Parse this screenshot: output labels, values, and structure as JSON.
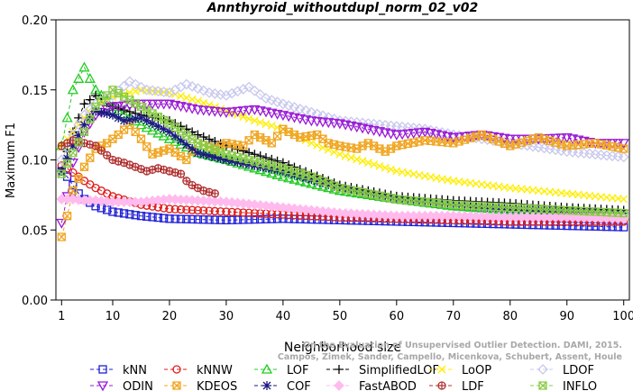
{
  "chart_data": {
    "type": "line",
    "title": "Annthyroid_withoutdupl_norm_02_v02",
    "xlabel": "Neighborhood size",
    "ylabel": "Maximum F1",
    "xlim": [
      0,
      101
    ],
    "ylim": [
      0.0,
      0.2
    ],
    "xticks": [
      1,
      10,
      20,
      30,
      40,
      50,
      60,
      70,
      80,
      90,
      100
    ],
    "yticks": [
      0.0,
      0.05,
      0.1,
      0.15,
      0.2
    ],
    "xtick_labels": [
      "1",
      "10",
      "20",
      "30",
      "40",
      "50",
      "60",
      "70",
      "80",
      "90",
      "100"
    ],
    "ytick_labels": [
      "0.00",
      "0.05",
      "0.10",
      "0.15",
      "0.20"
    ],
    "watermark": "Campos, Zimek, Sander, Campello, Micenkova, Schubert, Assent, Houle\nOn the Evaluation of Unsupervised Outlier Detection. DAMI, 2015.",
    "legend_position": "bottom",
    "series": [
      {
        "name": "kNN",
        "color": "#1f1fd6",
        "marker": "square",
        "x": [
          1,
          2,
          3,
          4,
          5,
          7,
          10,
          15,
          20,
          30,
          40,
          50,
          60,
          70,
          80,
          90,
          100
        ],
        "y": [
          0.092,
          0.088,
          0.082,
          0.076,
          0.072,
          0.067,
          0.063,
          0.06,
          0.058,
          0.057,
          0.058,
          0.057,
          0.056,
          0.055,
          0.054,
          0.053,
          0.052
        ]
      },
      {
        "name": "kNNW",
        "color": "#e01b1b",
        "marker": "circle",
        "x": [
          1,
          2,
          3,
          4,
          5,
          7,
          10,
          15,
          20,
          30,
          40,
          50,
          60,
          70,
          80,
          90,
          100
        ],
        "y": [
          0.096,
          0.094,
          0.091,
          0.088,
          0.085,
          0.08,
          0.074,
          0.068,
          0.065,
          0.063,
          0.061,
          0.059,
          0.058,
          0.057,
          0.056,
          0.056,
          0.056
        ]
      },
      {
        "name": "LOF",
        "color": "#22cc22",
        "marker": "triangle-up",
        "x": [
          1,
          2,
          3,
          4,
          5,
          7,
          10,
          15,
          20,
          25,
          30,
          35,
          40,
          45,
          50,
          60,
          70,
          80,
          90,
          100
        ],
        "y": [
          0.11,
          0.13,
          0.15,
          0.158,
          0.166,
          0.15,
          0.138,
          0.125,
          0.115,
          0.105,
          0.1,
          0.094,
          0.088,
          0.083,
          0.078,
          0.072,
          0.067,
          0.064,
          0.062,
          0.06
        ]
      },
      {
        "name": "SimplifiedLOF",
        "color": "#000000",
        "marker": "plus",
        "x": [
          1,
          3,
          5,
          7,
          10,
          15,
          20,
          25,
          30,
          35,
          40,
          45,
          50,
          55,
          60,
          70,
          80,
          90,
          100
        ],
        "y": [
          0.092,
          0.12,
          0.14,
          0.146,
          0.138,
          0.132,
          0.128,
          0.118,
          0.11,
          0.104,
          0.098,
          0.09,
          0.082,
          0.078,
          0.074,
          0.071,
          0.069,
          0.066,
          0.064
        ]
      },
      {
        "name": "LoOP",
        "color": "#ffee00",
        "marker": "x",
        "x": [
          1,
          3,
          5,
          7,
          10,
          15,
          20,
          25,
          30,
          35,
          40,
          45,
          50,
          55,
          60,
          70,
          80,
          90,
          100
        ],
        "y": [
          0.11,
          0.12,
          0.13,
          0.138,
          0.145,
          0.15,
          0.148,
          0.142,
          0.135,
          0.128,
          0.122,
          0.112,
          0.104,
          0.098,
          0.092,
          0.085,
          0.08,
          0.076,
          0.072
        ]
      },
      {
        "name": "LDOF",
        "color": "#c8c8ee",
        "marker": "diamond",
        "x": [
          1,
          3,
          5,
          7,
          10,
          13,
          16,
          20,
          23,
          27,
          30,
          34,
          37,
          40,
          45,
          50,
          55,
          60,
          65,
          70,
          80,
          90,
          100
        ],
        "y": [
          0.1,
          0.118,
          0.132,
          0.14,
          0.146,
          0.156,
          0.15,
          0.148,
          0.154,
          0.148,
          0.146,
          0.152,
          0.144,
          0.14,
          0.134,
          0.128,
          0.126,
          0.124,
          0.122,
          0.118,
          0.112,
          0.106,
          0.102
        ]
      },
      {
        "name": "ODIN",
        "color": "#9a18d6",
        "marker": "triangle-down",
        "x": [
          1,
          2,
          3,
          5,
          7,
          10,
          15,
          20,
          25,
          30,
          35,
          40,
          45,
          50,
          55,
          60,
          65,
          70,
          75,
          80,
          85,
          90,
          95,
          100
        ],
        "y": [
          0.055,
          0.074,
          0.098,
          0.12,
          0.132,
          0.138,
          0.14,
          0.14,
          0.136,
          0.134,
          0.136,
          0.132,
          0.128,
          0.126,
          0.122,
          0.118,
          0.12,
          0.116,
          0.118,
          0.115,
          0.115,
          0.116,
          0.112,
          0.112
        ]
      },
      {
        "name": "KDEOS",
        "color": "#f0a520",
        "marker": "square-x",
        "x": [
          1,
          2,
          3,
          5,
          7,
          9,
          11,
          13,
          15,
          17,
          20,
          23,
          25,
          28,
          30,
          33,
          35,
          38,
          40,
          43,
          46,
          48,
          50,
          53,
          55,
          58,
          60,
          65,
          70,
          75,
          80,
          85,
          90,
          95,
          100
        ],
        "y": [
          0.045,
          0.06,
          0.078,
          0.095,
          0.108,
          0.112,
          0.118,
          0.125,
          0.115,
          0.104,
          0.108,
          0.1,
          0.112,
          0.108,
          0.112,
          0.11,
          0.118,
          0.112,
          0.122,
          0.116,
          0.118,
          0.112,
          0.11,
          0.108,
          0.112,
          0.106,
          0.11,
          0.114,
          0.112,
          0.118,
          0.11,
          0.116,
          0.11,
          0.112,
          0.108
        ]
      },
      {
        "name": "COF",
        "color": "#1a1a80",
        "marker": "star",
        "x": [
          1,
          3,
          5,
          7,
          10,
          12,
          15,
          20,
          25,
          30,
          35,
          40,
          45,
          50,
          60,
          70,
          80,
          90,
          100
        ],
        "y": [
          0.092,
          0.11,
          0.125,
          0.135,
          0.132,
          0.128,
          0.13,
          0.12,
          0.105,
          0.1,
          0.096,
          0.092,
          0.086,
          0.08,
          0.072,
          0.068,
          0.065,
          0.063,
          0.062
        ]
      },
      {
        "name": "FastABOD",
        "color": "#ffbbee",
        "marker": "diamond-filled",
        "x": [
          1,
          3,
          5,
          7,
          10,
          15,
          20,
          25,
          30,
          35,
          40,
          45,
          50,
          55,
          60,
          70,
          80,
          90,
          100
        ],
        "y": [
          0.072,
          0.072,
          0.071,
          0.071,
          0.07,
          0.07,
          0.072,
          0.071,
          0.07,
          0.068,
          0.066,
          0.064,
          0.062,
          0.061,
          0.06,
          0.06,
          0.059,
          0.059,
          0.058
        ]
      },
      {
        "name": "LDF",
        "color": "#b03030",
        "marker": "circle-plus",
        "x": [
          1,
          3,
          5,
          7,
          10,
          12,
          14,
          16,
          18,
          20,
          22,
          23,
          24,
          25,
          26,
          27,
          28
        ],
        "y": [
          0.11,
          0.114,
          0.112,
          0.11,
          0.1,
          0.098,
          0.095,
          0.092,
          0.094,
          0.092,
          0.09,
          0.085,
          0.082,
          0.08,
          0.078,
          0.077,
          0.076
        ]
      },
      {
        "name": "INFLO",
        "color": "#88cc44",
        "marker": "square-x",
        "x": [
          1,
          3,
          5,
          7,
          10,
          15,
          20,
          25,
          30,
          35,
          40,
          45,
          50,
          60,
          70,
          80,
          90,
          100
        ],
        "y": [
          0.09,
          0.105,
          0.12,
          0.138,
          0.15,
          0.138,
          0.126,
          0.112,
          0.104,
          0.099,
          0.094,
          0.088,
          0.08,
          0.072,
          0.068,
          0.066,
          0.064,
          0.062
        ]
      }
    ]
  }
}
